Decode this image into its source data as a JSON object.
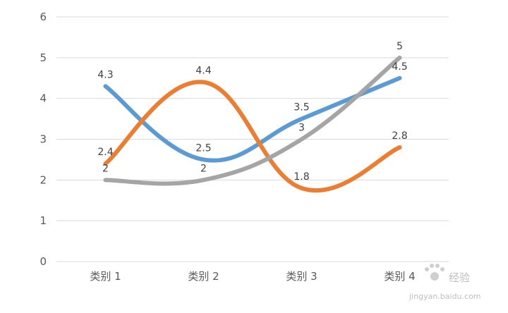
{
  "chart_data": {
    "type": "line",
    "smooth": true,
    "categories": [
      "类别 1",
      "类别 2",
      "类别 3",
      "类别 4"
    ],
    "ylim": [
      0,
      6
    ],
    "yticks": [
      0,
      1,
      2,
      3,
      4,
      5,
      6
    ],
    "grid": true,
    "legend": "none",
    "series": [
      {
        "color": "#5b9bd5",
        "values": [
          4.3,
          2.5,
          3.5,
          4.5
        ],
        "labels": [
          "4.3",
          "2.5",
          "3.5",
          "4.5"
        ]
      },
      {
        "color": "#ed7d31",
        "values": [
          2.4,
          4.4,
          1.8,
          2.8
        ],
        "labels": [
          "2.4",
          "4.4",
          "1.8",
          "2.8"
        ]
      },
      {
        "color": "#a5a5a5",
        "values": [
          2,
          2,
          3,
          5
        ],
        "labels": [
          "2",
          "2",
          "3",
          "5"
        ]
      }
    ]
  },
  "watermark": {
    "text": "经验",
    "url": "jingyan.baidu.com",
    "icon": "paw-icon"
  }
}
